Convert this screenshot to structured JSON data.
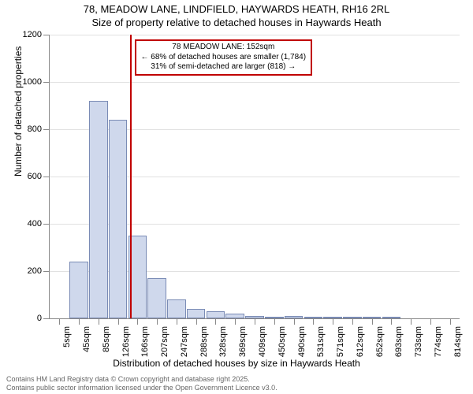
{
  "title_line1": "78, MEADOW LANE, LINDFIELD, HAYWARDS HEATH, RH16 2RL",
  "title_line2": "Size of property relative to detached houses in Haywards Heath",
  "ylabel": "Number of detached properties",
  "xlabel": "Distribution of detached houses by size in Haywards Heath",
  "footer_line1": "Contains HM Land Registry data © Crown copyright and database right 2025.",
  "footer_line2": "Contains public sector information licensed under the Open Government Licence v3.0.",
  "annotation": {
    "line1": "78 MEADOW LANE: 152sqm",
    "line2": "← 68% of detached houses are smaller (1,784)",
    "line3": "31% of semi-detached are larger (818) →",
    "vline_at_index": 3.6
  },
  "chart": {
    "type": "histogram",
    "ylim": [
      0,
      1200
    ],
    "yticks": [
      0,
      200,
      400,
      600,
      800,
      1000,
      1200
    ],
    "bar_color": "#cfd8ec",
    "bar_border": "#7a8bb5",
    "grid_color": "#888888",
    "background_color": "#ffffff",
    "annotation_border": "#c00000",
    "vline_color": "#c00000",
    "label_fontsize": 11,
    "title_fontsize": 13,
    "xticks": [
      "5sqm",
      "45sqm",
      "85sqm",
      "126sqm",
      "166sqm",
      "207sqm",
      "247sqm",
      "288sqm",
      "328sqm",
      "369sqm",
      "409sqm",
      "450sqm",
      "490sqm",
      "531sqm",
      "571sqm",
      "612sqm",
      "652sqm",
      "693sqm",
      "733sqm",
      "774sqm",
      "814sqm"
    ],
    "values": [
      0,
      240,
      920,
      840,
      350,
      170,
      80,
      40,
      30,
      20,
      10,
      5,
      10,
      3,
      3,
      2,
      2,
      2,
      0,
      0,
      0
    ]
  }
}
